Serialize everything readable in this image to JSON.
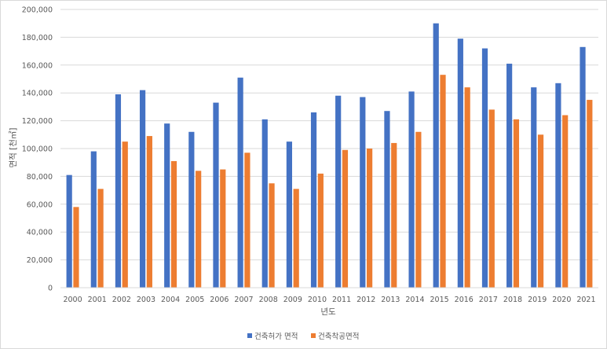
{
  "chart_data": {
    "type": "bar",
    "title": "",
    "xlabel": "년도",
    "ylabel": "면적 [천㎡]",
    "ylim": [
      0,
      200000
    ],
    "y_ticks": [
      "0",
      "20,000",
      "40,000",
      "60,000",
      "80,000",
      "100,000",
      "120,000",
      "140,000",
      "160,000",
      "180,000",
      "200,000"
    ],
    "y_tick_values": [
      0,
      20000,
      40000,
      60000,
      80000,
      100000,
      120000,
      140000,
      160000,
      180000,
      200000
    ],
    "grid": true,
    "legend_position": "bottom",
    "categories": [
      "2000",
      "2001",
      "2002",
      "2003",
      "2004",
      "2005",
      "2006",
      "2007",
      "2008",
      "2009",
      "2010",
      "2011",
      "2012",
      "2013",
      "2014",
      "2015",
      "2016",
      "2017",
      "2018",
      "2019",
      "2020",
      "2021"
    ],
    "series": [
      {
        "name": "건축허가 면적",
        "color": "#4472c4",
        "values": [
          81000,
          98000,
          139000,
          142000,
          118000,
          112000,
          133000,
          151000,
          121000,
          105000,
          126000,
          138000,
          137000,
          127000,
          141000,
          190000,
          179000,
          172000,
          161000,
          144000,
          147000,
          173000
        ]
      },
      {
        "name": "건축착공면적",
        "color": "#ed7d31",
        "values": [
          58000,
          71000,
          105000,
          109000,
          91000,
          84000,
          85000,
          97000,
          75000,
          71000,
          82000,
          99000,
          100000,
          104000,
          112000,
          153000,
          144000,
          128000,
          121000,
          110000,
          124000,
          135000
        ]
      }
    ]
  }
}
